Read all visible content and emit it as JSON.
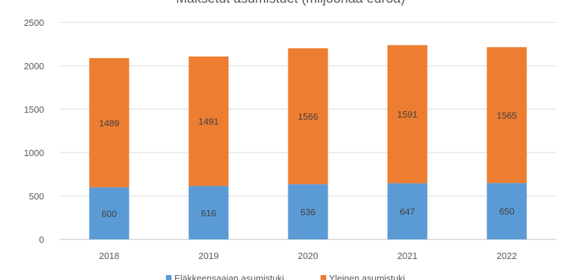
{
  "chart_data": {
    "type": "bar",
    "stacked": true,
    "title": "Maksetut asumistuet (miljoonaa euroa)",
    "categories": [
      "2018",
      "2019",
      "2020",
      "2021",
      "2022"
    ],
    "series": [
      {
        "name": "Eläkkeensaajan asumistuki",
        "color": "#5b9bd5",
        "values": [
          600,
          616,
          636,
          647,
          650
        ]
      },
      {
        "name": "Yleinen asumistuki",
        "color": "#ed7d31",
        "values": [
          1489,
          1491,
          1566,
          1591,
          1565
        ]
      }
    ],
    "ylim": [
      0,
      2500
    ],
    "yticks": [
      "0",
      "500",
      "1000",
      "1500",
      "2000",
      "2500"
    ],
    "grid": true,
    "legend": "bottom",
    "data_labels": true
  }
}
